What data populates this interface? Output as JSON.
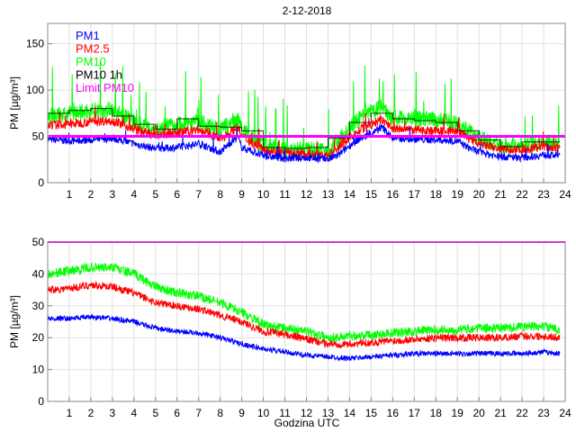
{
  "chart_data": [
    {
      "type": "line",
      "title": "2-12-2018",
      "xlabel": "",
      "ylabel": "PM [µg/m³]",
      "xlim": [
        0,
        24
      ],
      "ylim": [
        0,
        172
      ],
      "xticks": [
        1,
        2,
        3,
        4,
        5,
        6,
        7,
        8,
        9,
        10,
        11,
        12,
        13,
        14,
        15,
        16,
        17,
        18,
        19,
        20,
        21,
        22,
        23,
        24
      ],
      "yticks": [
        0,
        50,
        100,
        150
      ],
      "grid": true,
      "legend_position": "top-left",
      "legend": [
        {
          "name": "PM1",
          "color": "#0000ff"
        },
        {
          "name": "PM2.5",
          "color": "#ff0000"
        },
        {
          "name": "PM10",
          "color": "#00ff00"
        },
        {
          "name": "PM10 1h",
          "color": "#000000"
        },
        {
          "name": "Limit PM10",
          "color": "#ff00ff"
        }
      ],
      "series": [
        {
          "name": "PM1",
          "color": "#0000ff",
          "x": [
            0,
            1,
            2,
            3,
            4,
            5,
            6,
            7,
            8,
            8.8,
            9,
            10,
            11,
            12,
            13,
            13.5,
            14,
            14.5,
            15,
            15.5,
            16,
            17,
            18,
            19,
            19.5,
            20,
            21,
            22,
            23,
            23.75
          ],
          "y": [
            47,
            45,
            46,
            48,
            42,
            37,
            38,
            42,
            33,
            50,
            38,
            29,
            26,
            27,
            25,
            30,
            40,
            48,
            52,
            60,
            48,
            47,
            46,
            45,
            38,
            33,
            28,
            27,
            30,
            29
          ]
        },
        {
          "name": "PM2.5",
          "color": "#ff0000",
          "x": [
            0,
            1,
            2,
            3,
            4,
            5,
            6,
            7,
            8,
            8.8,
            9,
            10,
            11,
            12,
            13,
            13.5,
            14,
            14.5,
            15,
            15.5,
            16,
            17,
            18,
            19,
            19.5,
            20,
            21,
            22,
            23,
            23.75
          ],
          "y": [
            62,
            63,
            66,
            67,
            58,
            51,
            54,
            57,
            47,
            60,
            50,
            36,
            32,
            31,
            30,
            38,
            48,
            57,
            62,
            68,
            58,
            57,
            56,
            56,
            48,
            42,
            36,
            36,
            39,
            37
          ]
        },
        {
          "name": "PM10",
          "color": "#00ff00",
          "x": [
            0,
            1,
            2,
            3,
            4,
            5,
            6,
            7,
            8,
            8.8,
            9,
            10,
            11,
            12,
            13,
            13.5,
            14,
            14.5,
            15,
            15.5,
            16,
            17,
            18,
            19,
            19.5,
            20,
            21,
            22,
            23,
            23.75
          ],
          "y": [
            72,
            74,
            78,
            79,
            66,
            58,
            63,
            66,
            56,
            70,
            57,
            40,
            37,
            36,
            34,
            46,
            58,
            70,
            76,
            82,
            70,
            69,
            68,
            66,
            56,
            48,
            40,
            42,
            44,
            42
          ]
        },
        {
          "name": "PM10 1h",
          "color": "#000000",
          "step": true,
          "x": [
            0,
            1,
            2,
            3,
            4,
            5,
            6,
            7,
            8,
            9,
            10,
            11,
            12,
            13,
            14,
            15,
            16,
            17,
            18,
            19,
            20,
            21,
            22,
            23,
            23.75
          ],
          "y": [
            75,
            78,
            80,
            72,
            63,
            58,
            69,
            61,
            60,
            56,
            38,
            37,
            38,
            48,
            65,
            75,
            69,
            67,
            65,
            56,
            46,
            39,
            44,
            44,
            44
          ]
        },
        {
          "name": "Limit PM10",
          "color": "#ff00ff",
          "x": [
            0,
            24
          ],
          "y": [
            50,
            50
          ]
        }
      ]
    },
    {
      "type": "line",
      "title": "",
      "xlabel": "Godzina UTC",
      "ylabel": "PM [µg/m³]",
      "xlim": [
        0,
        24
      ],
      "ylim": [
        0,
        50
      ],
      "xticks": [
        1,
        2,
        3,
        4,
        5,
        6,
        7,
        8,
        9,
        10,
        11,
        12,
        13,
        14,
        15,
        16,
        17,
        18,
        19,
        20,
        21,
        22,
        23,
        24
      ],
      "yticks": [
        0,
        10,
        20,
        30,
        40,
        50
      ],
      "grid": true,
      "series": [
        {
          "name": "PM1",
          "color": "#0000ff",
          "x": [
            0,
            1,
            2,
            3,
            4,
            5,
            6,
            7,
            8,
            9,
            10,
            11,
            12,
            13,
            14,
            15,
            16,
            17,
            18,
            19,
            20,
            21,
            22,
            23,
            23.75
          ],
          "y": [
            26,
            26,
            26.5,
            26,
            25,
            23,
            22,
            21.5,
            20,
            18,
            16.5,
            15.5,
            14.5,
            14,
            13.5,
            14,
            14.5,
            15,
            15,
            15,
            15,
            15,
            15,
            15.5,
            15
          ]
        },
        {
          "name": "PM2.5",
          "color": "#ff0000",
          "x": [
            0,
            1,
            2,
            3,
            4,
            5,
            6,
            7,
            8,
            9,
            10,
            11,
            12,
            13,
            14,
            15,
            16,
            17,
            18,
            19,
            20,
            21,
            22,
            23,
            23.75
          ],
          "y": [
            35,
            35.5,
            36.5,
            36,
            34,
            31,
            30,
            29,
            27,
            25,
            22,
            21,
            19.5,
            18,
            18,
            18.5,
            19,
            19.5,
            20,
            20,
            20,
            20,
            20.5,
            20.5,
            20
          ]
        },
        {
          "name": "PM10",
          "color": "#00ff00",
          "x": [
            0,
            1,
            2,
            3,
            4,
            5,
            6,
            7,
            8,
            9,
            10,
            11,
            12,
            13,
            14,
            15,
            16,
            17,
            18,
            19,
            20,
            21,
            22,
            23,
            23.75
          ],
          "y": [
            40,
            41,
            42,
            42,
            40,
            36,
            34,
            33,
            31,
            28,
            24,
            23,
            22,
            20,
            20.5,
            21,
            21.5,
            22,
            22.5,
            22.5,
            23,
            23,
            23.5,
            23.5,
            22.5
          ]
        },
        {
          "name": "Limit PM10",
          "color": "#ff00ff",
          "x": [
            0,
            24
          ],
          "y": [
            50,
            50
          ]
        }
      ]
    }
  ]
}
